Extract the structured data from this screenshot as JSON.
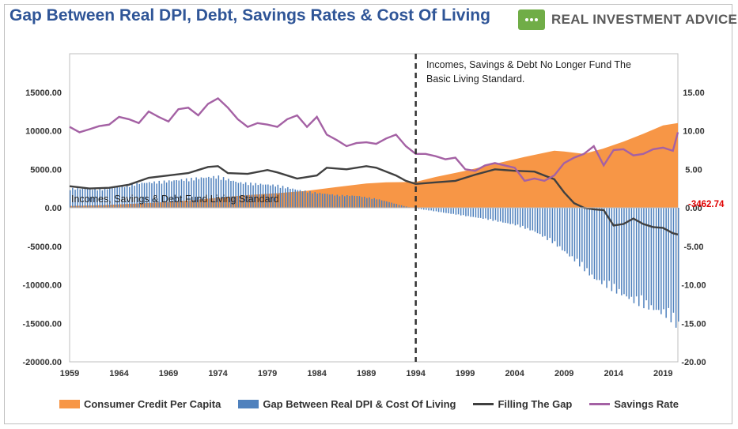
{
  "title": "Gap Between Real DPI, Debt, Savings Rates & Cost Of Living",
  "brand": {
    "name": "REAL INVESTMENT ADVICE"
  },
  "colors": {
    "title": "#2f5597",
    "consumer_credit": "#f79646",
    "gap": "#4f81bd",
    "filling_gap": "#404040",
    "savings_rate": "#a461a4",
    "callout": "#e00000",
    "brand_badge": "#70ad47"
  },
  "annotations": {
    "left_region": "Incomes, Savings & Debt Fund Living Standard",
    "right_region_line1": "Incomes, Savings & Debt No Longer Fund The",
    "right_region_line2": "Basic Living Standard.",
    "last_value": "-3462.74"
  },
  "chart_data": {
    "type": "area",
    "x_tick_labels": [
      "1959",
      "1964",
      "1969",
      "1974",
      "1979",
      "1984",
      "1989",
      "1994",
      "1999",
      "2004",
      "2009",
      "2014",
      "2019"
    ],
    "xlim": [
      1959,
      2020.5
    ],
    "vertical_marker_year": 1994,
    "y_left": {
      "ylim": [
        -20000,
        20000
      ],
      "tick_labels": [
        "15000.00",
        "10000.00",
        "5000.00",
        "0.00",
        "-5000.00",
        "-10000.00",
        "-15000.00",
        "-20000.00"
      ],
      "tick_values": [
        15000,
        10000,
        5000,
        0,
        -5000,
        -10000,
        -15000,
        -20000
      ]
    },
    "y_right": {
      "ylim": [
        -20,
        20
      ],
      "tick_labels": [
        "15.00",
        "10.00",
        "5.00",
        "0.00",
        "-5.00",
        "-10.00",
        "-15.00",
        "-20.00"
      ],
      "tick_values": [
        15,
        10,
        5,
        0,
        -5,
        -10,
        -15,
        -20
      ]
    },
    "series": [
      {
        "name": "Consumer Credit Per Capita",
        "kind": "area",
        "axis": "left",
        "points": [
          [
            1959,
            250
          ],
          [
            1962,
            330
          ],
          [
            1965,
            500
          ],
          [
            1968,
            700
          ],
          [
            1971,
            950
          ],
          [
            1974,
            1300
          ],
          [
            1977,
            1650
          ],
          [
            1980,
            1900
          ],
          [
            1983,
            2200
          ],
          [
            1986,
            2700
          ],
          [
            1989,
            3150
          ],
          [
            1991,
            3300
          ],
          [
            1994,
            3350
          ],
          [
            1996,
            4000
          ],
          [
            1999,
            4800
          ],
          [
            2002,
            5700
          ],
          [
            2005,
            6600
          ],
          [
            2008,
            7400
          ],
          [
            2009,
            7300
          ],
          [
            2011,
            7000
          ],
          [
            2013,
            7700
          ],
          [
            2015,
            8600
          ],
          [
            2017,
            9600
          ],
          [
            2019,
            10700
          ],
          [
            2020.5,
            11000
          ]
        ]
      },
      {
        "name": "Gap Between Real DPI & Cost Of Living",
        "kind": "bar",
        "axis": "left",
        "points": [
          [
            1959,
            2600
          ],
          [
            1962,
            2500
          ],
          [
            1964,
            2800
          ],
          [
            1966,
            3300
          ],
          [
            1969,
            3600
          ],
          [
            1972,
            4000
          ],
          [
            1974,
            4200
          ],
          [
            1976,
            3400
          ],
          [
            1978,
            3200
          ],
          [
            1980,
            3000
          ],
          [
            1982,
            2400
          ],
          [
            1984,
            2000
          ],
          [
            1986,
            1700
          ],
          [
            1988,
            1600
          ],
          [
            1990,
            1200
          ],
          [
            1992,
            500
          ],
          [
            1993.5,
            0
          ],
          [
            1995,
            -300
          ],
          [
            1998,
            -900
          ],
          [
            2001,
            -1500
          ],
          [
            2004,
            -2300
          ],
          [
            2006,
            -3200
          ],
          [
            2008,
            -4800
          ],
          [
            2010,
            -7000
          ],
          [
            2012,
            -9500
          ],
          [
            2014,
            -11000
          ],
          [
            2016,
            -12500
          ],
          [
            2018,
            -13600
          ],
          [
            2019.5,
            -14500
          ],
          [
            2020.5,
            -16000
          ]
        ]
      },
      {
        "name": "Filling The Gap",
        "kind": "line",
        "axis": "left",
        "points": [
          [
            1959,
            2800
          ],
          [
            1961,
            2500
          ],
          [
            1963,
            2600
          ],
          [
            1965,
            3000
          ],
          [
            1967,
            3900
          ],
          [
            1969,
            4200
          ],
          [
            1971,
            4500
          ],
          [
            1973,
            5300
          ],
          [
            1974,
            5400
          ],
          [
            1975,
            4500
          ],
          [
            1977,
            4400
          ],
          [
            1979,
            4900
          ],
          [
            1980,
            4600
          ],
          [
            1982,
            3800
          ],
          [
            1984,
            4200
          ],
          [
            1985,
            5200
          ],
          [
            1987,
            5000
          ],
          [
            1989,
            5400
          ],
          [
            1990,
            5200
          ],
          [
            1992,
            4200
          ],
          [
            1993,
            3500
          ],
          [
            1994,
            3100
          ],
          [
            1996,
            3300
          ],
          [
            1998,
            3500
          ],
          [
            2000,
            4300
          ],
          [
            2002,
            5000
          ],
          [
            2004,
            4800
          ],
          [
            2006,
            4700
          ],
          [
            2007,
            4200
          ],
          [
            2008,
            3700
          ],
          [
            2009,
            2000
          ],
          [
            2010,
            600
          ],
          [
            2011,
            0
          ],
          [
            2012,
            -200
          ],
          [
            2013,
            -300
          ],
          [
            2014,
            -2300
          ],
          [
            2015,
            -2100
          ],
          [
            2016,
            -1400
          ],
          [
            2017,
            -2100
          ],
          [
            2018,
            -2500
          ],
          [
            2019,
            -2600
          ],
          [
            2020,
            -3300
          ],
          [
            2020.5,
            -3462.74
          ]
        ]
      },
      {
        "name": "Savings Rate",
        "kind": "line",
        "axis": "right",
        "points": [
          [
            1959,
            10.5
          ],
          [
            1960,
            9.8
          ],
          [
            1961,
            10.2
          ],
          [
            1962,
            10.6
          ],
          [
            1963,
            10.8
          ],
          [
            1964,
            11.8
          ],
          [
            1965,
            11.5
          ],
          [
            1966,
            11.0
          ],
          [
            1967,
            12.5
          ],
          [
            1968,
            11.8
          ],
          [
            1969,
            11.2
          ],
          [
            1970,
            12.8
          ],
          [
            1971,
            13.0
          ],
          [
            1972,
            12.0
          ],
          [
            1973,
            13.5
          ],
          [
            1974,
            14.2
          ],
          [
            1975,
            13.0
          ],
          [
            1976,
            11.5
          ],
          [
            1977,
            10.5
          ],
          [
            1978,
            11.0
          ],
          [
            1979,
            10.8
          ],
          [
            1980,
            10.5
          ],
          [
            1981,
            11.5
          ],
          [
            1982,
            12.0
          ],
          [
            1983,
            10.5
          ],
          [
            1984,
            11.8
          ],
          [
            1985,
            9.5
          ],
          [
            1986,
            8.8
          ],
          [
            1987,
            8.0
          ],
          [
            1988,
            8.4
          ],
          [
            1989,
            8.5
          ],
          [
            1990,
            8.3
          ],
          [
            1991,
            9.0
          ],
          [
            1992,
            9.5
          ],
          [
            1993,
            8.0
          ],
          [
            1994,
            7.0
          ],
          [
            1995,
            7.0
          ],
          [
            1996,
            6.7
          ],
          [
            1997,
            6.3
          ],
          [
            1998,
            6.5
          ],
          [
            1999,
            5.0
          ],
          [
            2000,
            4.8
          ],
          [
            2001,
            5.5
          ],
          [
            2002,
            5.8
          ],
          [
            2003,
            5.5
          ],
          [
            2004,
            5.2
          ],
          [
            2005,
            3.5
          ],
          [
            2006,
            3.8
          ],
          [
            2007,
            3.5
          ],
          [
            2008,
            4.2
          ],
          [
            2009,
            5.8
          ],
          [
            2010,
            6.5
          ],
          [
            2011,
            7.0
          ],
          [
            2012,
            8.0
          ],
          [
            2013,
            5.5
          ],
          [
            2014,
            7.5
          ],
          [
            2015,
            7.6
          ],
          [
            2016,
            6.8
          ],
          [
            2017,
            7.0
          ],
          [
            2018,
            7.6
          ],
          [
            2019,
            7.8
          ],
          [
            2020,
            7.4
          ],
          [
            2020.5,
            9.8
          ]
        ]
      }
    ],
    "legend": [
      "Consumer Credit Per Capita",
      "Gap Between Real DPI & Cost Of Living",
      "Filling The Gap",
      "Savings Rate"
    ],
    "legend_placement": "bottom"
  }
}
